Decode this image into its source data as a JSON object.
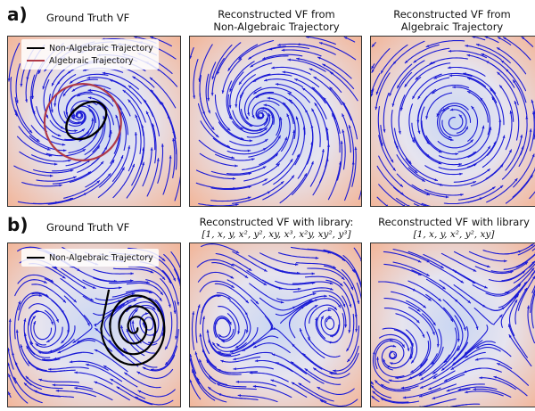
{
  "row_a": {
    "label": "a)",
    "panels": [
      {
        "title_line1": "Ground Truth VF",
        "title_line2": ""
      },
      {
        "title_line1": "Reconstructed VF from",
        "title_line2": "Non-Algebraic Trajectory"
      },
      {
        "title_line1": "Reconstructed VF from",
        "title_line2": "Algebraic Trajectory"
      }
    ],
    "legend": [
      {
        "label": "Non-Algebraic Trajectory",
        "color": "#000000"
      },
      {
        "label": "Algebraic Trajectory",
        "color": "#b03a48"
      }
    ]
  },
  "row_b": {
    "label": "b)",
    "panels": [
      {
        "title_line1": "Ground Truth VF",
        "title_line2": ""
      },
      {
        "title_line1": "Reconstructed VF with library:",
        "title_line2": "[1, x, y, x², y², xy, x³, x²y, xy², y³]"
      },
      {
        "title_line1": "Reconstructed VF with library",
        "title_line2": "[1, x, y, x², y², xy]"
      }
    ],
    "legend": [
      {
        "label": "Non-Algebraic Trajectory",
        "color": "#000000"
      }
    ]
  },
  "colors": {
    "streamline": "#1a1ad6",
    "trajectory": "#000000",
    "algebraic_trajectory": "#b03a48",
    "background_warm": "#f2b69a",
    "background_cool": "#c9d6f2"
  }
}
